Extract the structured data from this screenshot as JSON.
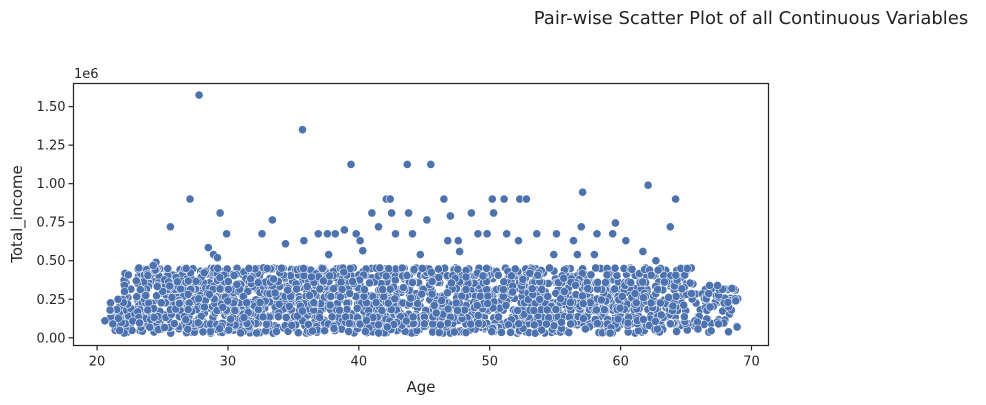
{
  "chart_data": {
    "type": "scatter",
    "suptitle": "Pair-wise Scatter Plot of all Continuous Variables",
    "xlabel": "Age",
    "ylabel": "Total_income",
    "y_offset_label": "1e6",
    "xlim": [
      18.2,
      71.3
    ],
    "ylim": [
      -0.05,
      1.65
    ],
    "x_ticks": [
      20,
      30,
      40,
      50,
      60,
      70
    ],
    "x_tick_labels": [
      "20",
      "30",
      "40",
      "50",
      "60",
      "70"
    ],
    "y_ticks": [
      0,
      0.25,
      0.5,
      0.75,
      1.0,
      1.25,
      1.5
    ],
    "y_tick_labels": [
      "0.00",
      "0.25",
      "0.50",
      "0.75",
      "1.00",
      "1.25",
      "1.50"
    ],
    "grid": false,
    "marker_color": "#4c72b0",
    "marker_edge_color": "#ffffff",
    "points_unit_note": "y values in millions (1e6)",
    "points": [
      [
        27.8,
        1.575
      ],
      [
        35.7,
        1.35
      ],
      [
        39.4,
        1.125
      ],
      [
        43.7,
        1.125
      ],
      [
        45.5,
        1.125
      ],
      [
        62.1,
        0.99
      ],
      [
        57.1,
        0.945
      ],
      [
        64.2,
        0.9
      ],
      [
        27.1,
        0.9
      ],
      [
        42.1,
        0.9
      ],
      [
        42.4,
        0.9
      ],
      [
        46.5,
        0.9
      ],
      [
        50.2,
        0.9
      ],
      [
        51.1,
        0.9
      ],
      [
        52.3,
        0.9
      ],
      [
        52.8,
        0.9
      ],
      [
        29.4,
        0.81
      ],
      [
        33.4,
        0.765
      ],
      [
        41.0,
        0.81
      ],
      [
        42.5,
        0.81
      ],
      [
        43.8,
        0.81
      ],
      [
        48.6,
        0.81
      ],
      [
        50.3,
        0.81
      ],
      [
        45.2,
        0.765
      ],
      [
        47.0,
        0.79
      ],
      [
        59.6,
        0.745
      ],
      [
        25.6,
        0.72
      ],
      [
        57.0,
        0.72
      ],
      [
        63.8,
        0.72
      ],
      [
        41.5,
        0.72
      ],
      [
        32.6,
        0.675
      ],
      [
        36.9,
        0.675
      ],
      [
        37.6,
        0.675
      ],
      [
        38.2,
        0.675
      ],
      [
        39.8,
        0.675
      ],
      [
        42.8,
        0.675
      ],
      [
        44.1,
        0.675
      ],
      [
        49.1,
        0.675
      ],
      [
        49.8,
        0.675
      ],
      [
        51.3,
        0.675
      ],
      [
        53.6,
        0.675
      ],
      [
        55.1,
        0.675
      ],
      [
        58.2,
        0.675
      ],
      [
        59.4,
        0.675
      ],
      [
        29.9,
        0.675
      ],
      [
        28.5,
        0.585
      ],
      [
        34.4,
        0.61
      ],
      [
        35.8,
        0.63
      ],
      [
        40.1,
        0.63
      ],
      [
        46.8,
        0.63
      ],
      [
        47.6,
        0.63
      ],
      [
        52.2,
        0.63
      ],
      [
        56.4,
        0.63
      ],
      [
        60.4,
        0.63
      ],
      [
        38.9,
        0.7
      ],
      [
        26.8,
        0.45
      ],
      [
        28.9,
        0.54
      ],
      [
        29.2,
        0.52
      ],
      [
        24.5,
        0.49
      ],
      [
        24.3,
        0.47
      ],
      [
        40.3,
        0.565
      ],
      [
        37.7,
        0.54
      ],
      [
        44.7,
        0.54
      ],
      [
        47.7,
        0.56
      ],
      [
        54.9,
        0.54
      ],
      [
        56.7,
        0.54
      ],
      [
        58.0,
        0.54
      ],
      [
        61.7,
        0.56
      ],
      [
        62.7,
        0.5
      ],
      [
        64.6,
        0.45
      ],
      [
        65.1,
        0.45
      ],
      [
        67.4,
        0.34
      ],
      [
        66.8,
        0.34
      ],
      [
        68.5,
        0.32
      ],
      [
        68.8,
        0.24
      ],
      [
        68.2,
        0.23
      ],
      [
        68.9,
        0.07
      ],
      [
        20.6,
        0.11
      ],
      [
        21.0,
        0.18
      ],
      [
        21.2,
        0.09
      ],
      [
        21.6,
        0.25
      ],
      [
        22.1,
        0.3
      ],
      [
        23.0,
        0.37
      ],
      [
        31.6,
        0.45
      ],
      [
        33.0,
        0.45
      ]
    ],
    "dense_regions_note": "plus a dense band of several thousand points between Age 21-69 and Total_income 0.02-0.45"
  }
}
